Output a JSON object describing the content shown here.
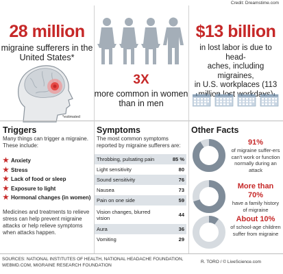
{
  "credit": "Credit: Dreamstime.com",
  "sufferers": {
    "headline": "28 million",
    "line1": "migraine sufferers in the",
    "line2": "United States*",
    "footnote": "*estimated"
  },
  "women": {
    "headline": "3X",
    "line1": "more common in women",
    "line2": "than in men"
  },
  "lost_labor": {
    "headline": "$13 billion",
    "line1": "in lost labor is due to head-",
    "line2": "aches, including migraines,",
    "line3": "in U.S. workplaces (113",
    "line4": "million lost workdays)"
  },
  "triggers": {
    "title": "Triggers",
    "intro": "Many things can trigger a migraine. These include:",
    "items": [
      "Anxiety",
      "Stress",
      "Lack of food or sleep",
      "Exposure to light",
      "Hormonal changes (in women)"
    ],
    "outro": "Medicines and treatments to relieve stress can help prevent migraine attacks or help relieve symptoms when attacks happen."
  },
  "symptoms": {
    "title": "Symptoms",
    "intro": "The most common symptoms reported by migraine sufferers are:",
    "rows": [
      {
        "label": "Throbbing, pulsating pain",
        "value": "85 %"
      },
      {
        "label": "Light sensitivity",
        "value": "80"
      },
      {
        "label": "Sound sensitivity",
        "value": "76"
      },
      {
        "label": "Nausea",
        "value": "73"
      },
      {
        "label": "Pain on one side",
        "value": "59"
      },
      {
        "label": "Vision changes, blurred vision",
        "value": "44"
      },
      {
        "label": "Aura",
        "value": "36"
      },
      {
        "label": "Vomiting",
        "value": "29"
      }
    ]
  },
  "other_facts": {
    "title": "Other Facts",
    "facts": [
      {
        "pct": "91%",
        "percent": 91,
        "text": "of migraine suffer-ers can't work or function normally during an attack"
      },
      {
        "pct": "More than 70%",
        "percent": 70,
        "text": "have a family history of migraine"
      },
      {
        "pct": "About 10%",
        "percent": 10,
        "text": "of school-age children suffer from migraine"
      }
    ]
  },
  "footer": {
    "sources": "SOURCES: NATIONAL INSTITUTES OF HEALTH, NATIONAL HEADACHE FOUNDATION, WEBMD.COM, MIGRAINE RESEARCH FOUNDATION",
    "signature": "R. TORO / © LiveScience.com"
  },
  "colors": {
    "accent": "#c62828",
    "donut_fill": "#7f8c99",
    "donut_track": "#d6dbe0",
    "figure": "#a4aeb8",
    "table_shade": "#dde2e7"
  }
}
